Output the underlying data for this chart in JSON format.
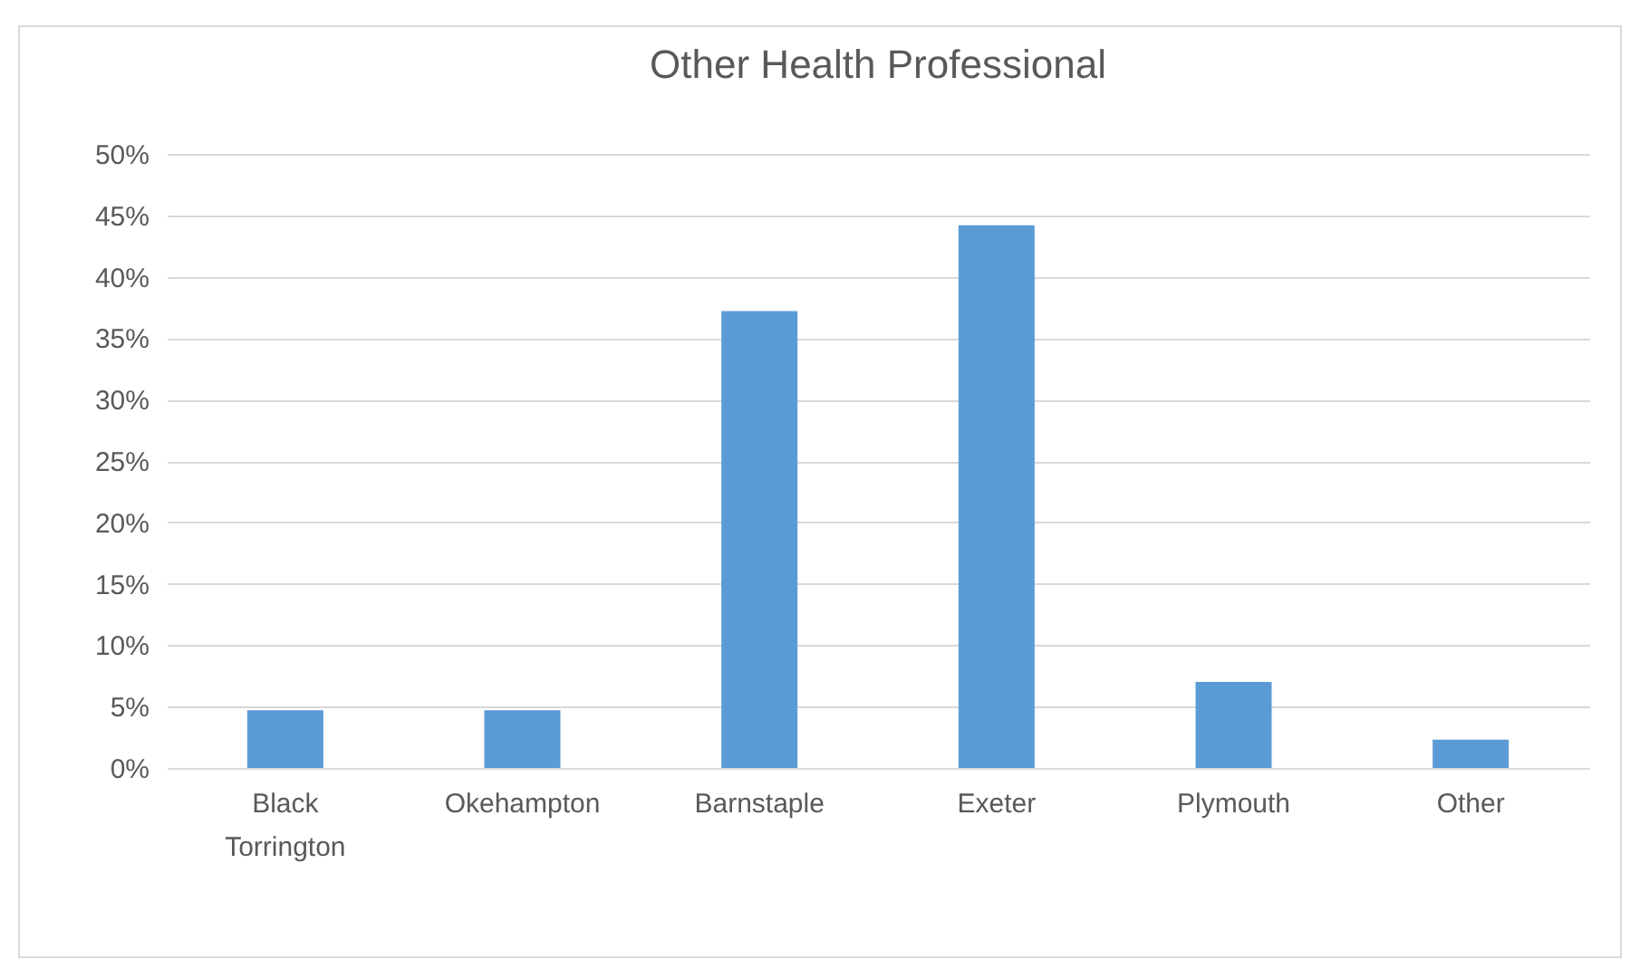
{
  "chart_data": {
    "type": "bar",
    "title": "Other Health Professional",
    "categories": [
      "Black Torrington",
      "Okehampton",
      "Barnstaple",
      "Exeter",
      "Plymouth",
      "Other"
    ],
    "values": [
      4.7,
      4.7,
      37.2,
      44.2,
      7.0,
      2.3
    ],
    "color": "#5b9bd5",
    "ylim": [
      0,
      50
    ],
    "yticks": [
      {
        "value": 0,
        "label": "0%"
      },
      {
        "value": 5,
        "label": "5%"
      },
      {
        "value": 10,
        "label": "10%"
      },
      {
        "value": 15,
        "label": "15%"
      },
      {
        "value": 20,
        "label": "20%"
      },
      {
        "value": 25,
        "label": "25%"
      },
      {
        "value": 30,
        "label": "30%"
      },
      {
        "value": 35,
        "label": "35%"
      },
      {
        "value": 40,
        "label": "40%"
      },
      {
        "value": 45,
        "label": "45%"
      },
      {
        "value": 50,
        "label": "50%"
      }
    ],
    "grid": "y"
  }
}
